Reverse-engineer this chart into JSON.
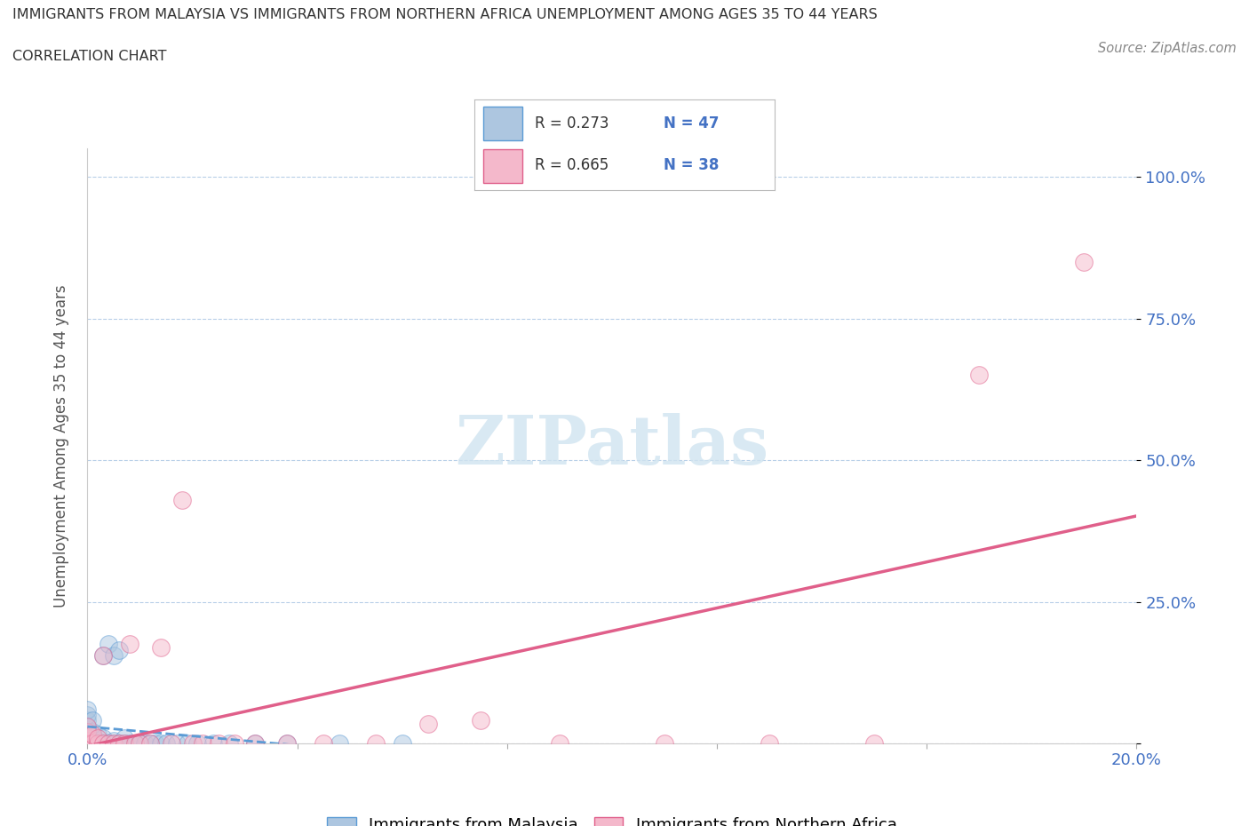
{
  "title_line1": "IMMIGRANTS FROM MALAYSIA VS IMMIGRANTS FROM NORTHERN AFRICA UNEMPLOYMENT AMONG AGES 35 TO 44 YEARS",
  "title_line2": "CORRELATION CHART",
  "source_text": "Source: ZipAtlas.com",
  "ylabel": "Unemployment Among Ages 35 to 44 years",
  "xlim": [
    0.0,
    0.2
  ],
  "ylim": [
    0.0,
    1.05
  ],
  "malaysia_color": "#adc6e0",
  "malaysia_edge": "#5b9bd5",
  "northern_africa_color": "#f4b8cb",
  "northern_africa_edge": "#e05f8a",
  "trend_malaysia_color": "#5b9bd5",
  "trend_na_color": "#e05f8a",
  "watermark_color": "#d0e4f0",
  "background_color": "#ffffff",
  "tick_color": "#4472c4",
  "malaysia_R": 0.273,
  "malaysia_N": 47,
  "northern_africa_R": 0.665,
  "northern_africa_N": 38,
  "malaysia_x": [
    0.0,
    0.0,
    0.0,
    0.0,
    0.0,
    0.0,
    0.0,
    0.0,
    0.0,
    0.0,
    0.001,
    0.001,
    0.001,
    0.001,
    0.001,
    0.002,
    0.002,
    0.002,
    0.003,
    0.003,
    0.003,
    0.004,
    0.004,
    0.005,
    0.005,
    0.005,
    0.006,
    0.006,
    0.007,
    0.007,
    0.008,
    0.009,
    0.01,
    0.011,
    0.012,
    0.013,
    0.014,
    0.015,
    0.017,
    0.019,
    0.021,
    0.024,
    0.027,
    0.032,
    0.038,
    0.048,
    0.06
  ],
  "malaysia_y": [
    0.0,
    0.005,
    0.01,
    0.015,
    0.02,
    0.025,
    0.03,
    0.04,
    0.05,
    0.06,
    0.0,
    0.005,
    0.01,
    0.02,
    0.04,
    0.0,
    0.005,
    0.015,
    0.0,
    0.01,
    0.155,
    0.0,
    0.175,
    0.0,
    0.005,
    0.155,
    0.0,
    0.165,
    0.0,
    0.01,
    0.0,
    0.0,
    0.0,
    0.0,
    0.0,
    0.0,
    0.0,
    0.0,
    0.0,
    0.0,
    0.0,
    0.0,
    0.0,
    0.0,
    0.0,
    0.0,
    0.0
  ],
  "northern_africa_x": [
    0.0,
    0.0,
    0.0,
    0.0,
    0.0,
    0.001,
    0.001,
    0.002,
    0.002,
    0.003,
    0.003,
    0.004,
    0.005,
    0.006,
    0.007,
    0.008,
    0.009,
    0.01,
    0.012,
    0.014,
    0.016,
    0.018,
    0.02,
    0.022,
    0.025,
    0.028,
    0.032,
    0.038,
    0.045,
    0.055,
    0.065,
    0.075,
    0.09,
    0.11,
    0.13,
    0.15,
    0.17,
    0.19
  ],
  "northern_africa_y": [
    0.0,
    0.005,
    0.01,
    0.02,
    0.03,
    0.0,
    0.015,
    0.0,
    0.01,
    0.0,
    0.155,
    0.0,
    0.0,
    0.0,
    0.0,
    0.175,
    0.0,
    0.0,
    0.0,
    0.17,
    0.0,
    0.43,
    0.0,
    0.0,
    0.0,
    0.0,
    0.0,
    0.0,
    0.0,
    0.0,
    0.035,
    0.04,
    0.0,
    0.0,
    0.0,
    0.0,
    0.65,
    0.85
  ],
  "trend_malaysia_slope": 1.75,
  "trend_malaysia_intercept": 0.02,
  "trend_na_slope": 2.6,
  "trend_na_intercept": 0.02
}
